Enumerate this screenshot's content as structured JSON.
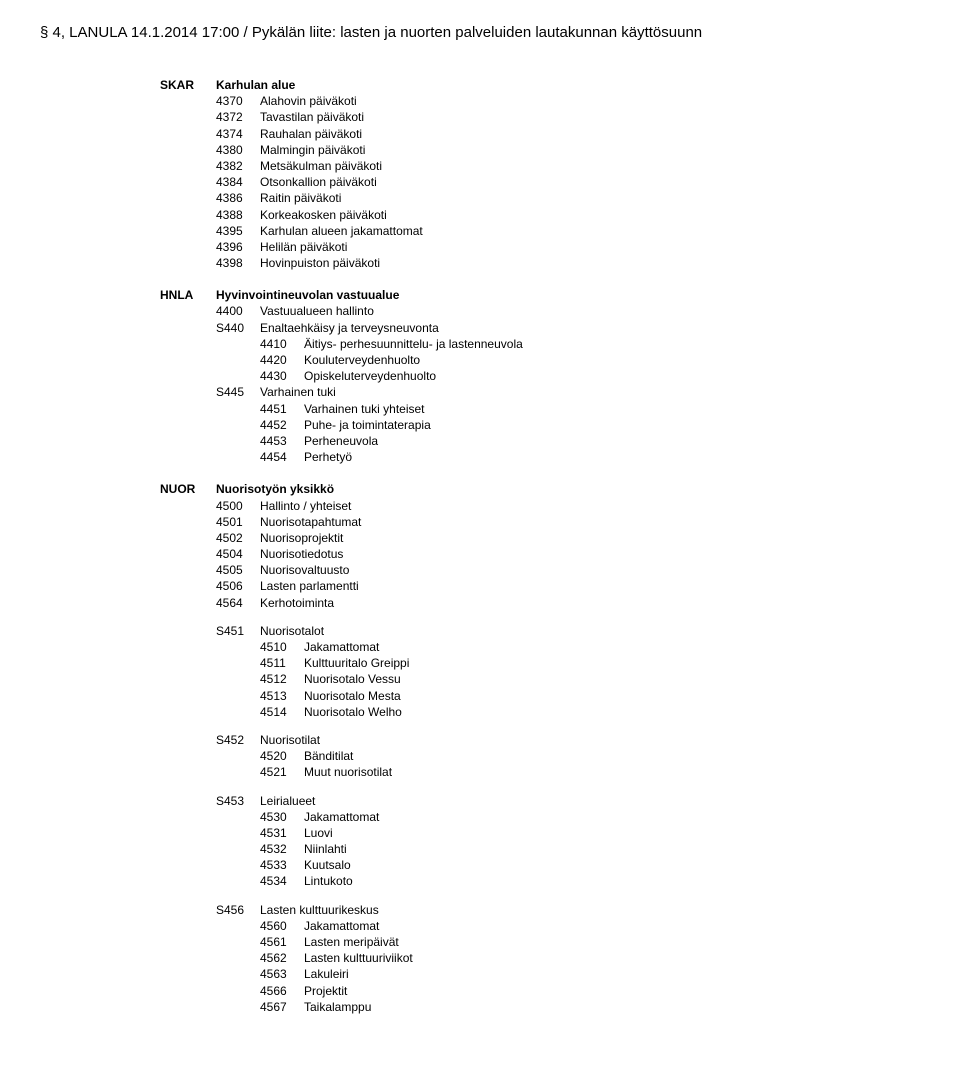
{
  "header": "§ 4, LANULA 14.1.2014 17:00 / Pykälän liite: lasten ja nuorten palveluiden lautakunnan käyttösuunn",
  "sections": [
    {
      "code": "SKAR",
      "title": "Karhulan alue",
      "items": [
        {
          "num": "4370",
          "label": "Alahovin päiväkoti"
        },
        {
          "num": "4372",
          "label": "Tavastilan päiväkoti"
        },
        {
          "num": "4374",
          "label": "Rauhalan päiväkoti"
        },
        {
          "num": "4380",
          "label": "Malmingin päiväkoti"
        },
        {
          "num": "4382",
          "label": "Metsäkulman päiväkoti"
        },
        {
          "num": "4384",
          "label": "Otsonkallion päiväkoti"
        },
        {
          "num": "4386",
          "label": "Raitin päiväkoti"
        },
        {
          "num": "4388",
          "label": "Korkeakosken päiväkoti"
        },
        {
          "num": "4395",
          "label": "Karhulan alueen jakamattomat"
        },
        {
          "num": "4396",
          "label": "Helilän päiväkoti"
        },
        {
          "num": "4398",
          "label": "Hovinpuiston päiväkoti"
        }
      ]
    },
    {
      "code": "HNLA",
      "title": "Hyvinvointineuvolan vastuualue",
      "items": [
        {
          "num": "4400",
          "label": "Vastuualueen hallinto"
        }
      ],
      "subgroups": [
        {
          "scode": "S440",
          "slabel": "Enaltaehkäisy ja terveysneuvonta",
          "items": [
            {
              "num": "4410",
              "label": "Äitiys- perhesuunnittelu- ja lastenneuvola"
            },
            {
              "num": "4420",
              "label": "Kouluterveydenhuolto"
            },
            {
              "num": "4430",
              "label": "Opiskeluterveydenhuolto"
            }
          ]
        },
        {
          "scode": "S445",
          "slabel": "Varhainen tuki",
          "items": [
            {
              "num": "4451",
              "label": "Varhainen tuki yhteiset"
            },
            {
              "num": "4452",
              "label": "Puhe- ja toimintaterapia"
            },
            {
              "num": "4453",
              "label": "Perheneuvola"
            },
            {
              "num": "4454",
              "label": "Perhetyö"
            }
          ]
        }
      ]
    },
    {
      "code": "NUOR",
      "title": "Nuorisotyön yksikkö",
      "items": [
        {
          "num": "4500",
          "label": "Hallinto / yhteiset"
        },
        {
          "num": "4501",
          "label": "Nuorisotapahtumat"
        },
        {
          "num": "4502",
          "label": "Nuorisoprojektit"
        },
        {
          "num": "4504",
          "label": "Nuorisotiedotus"
        },
        {
          "num": "4505",
          "label": "Nuorisovaltuusto"
        },
        {
          "num": "4506",
          "label": "Lasten parlamentti"
        },
        {
          "num": "4564",
          "label": "Kerhotoiminta"
        }
      ],
      "subgroups": [
        {
          "scode": "S451",
          "slabel": "Nuorisotalot",
          "items": [
            {
              "num": "4510",
              "label": "Jakamattomat"
            },
            {
              "num": "4511",
              "label": "Kulttuuritalo Greippi"
            },
            {
              "num": "4512",
              "label": "Nuorisotalo Vessu"
            },
            {
              "num": "4513",
              "label": "Nuorisotalo Mesta"
            },
            {
              "num": "4514",
              "label": "Nuorisotalo Welho"
            }
          ]
        },
        {
          "scode": "S452",
          "slabel": "Nuorisotilat",
          "items": [
            {
              "num": "4520",
              "label": "Bänditilat"
            },
            {
              "num": "4521",
              "label": "Muut nuorisotilat"
            }
          ]
        },
        {
          "scode": "S453",
          "slabel": "Leirialueet",
          "items": [
            {
              "num": "4530",
              "label": "Jakamattomat"
            },
            {
              "num": "4531",
              "label": "Luovi"
            },
            {
              "num": "4532",
              "label": "Niinlahti"
            },
            {
              "num": "4533",
              "label": "Kuutsalo"
            },
            {
              "num": "4534",
              "label": "Lintukoto"
            }
          ]
        },
        {
          "scode": "S456",
          "slabel": "Lasten kulttuurikeskus",
          "items": [
            {
              "num": "4560",
              "label": "Jakamattomat"
            },
            {
              "num": "4561",
              "label": "Lasten meripäivät"
            },
            {
              "num": "4562",
              "label": "Lasten kulttuuriviikot"
            },
            {
              "num": "4563",
              "label": "Lakuleiri"
            },
            {
              "num": "4566",
              "label": "Projektit"
            },
            {
              "num": "4567",
              "label": "Taikalamppu"
            }
          ]
        }
      ]
    }
  ]
}
